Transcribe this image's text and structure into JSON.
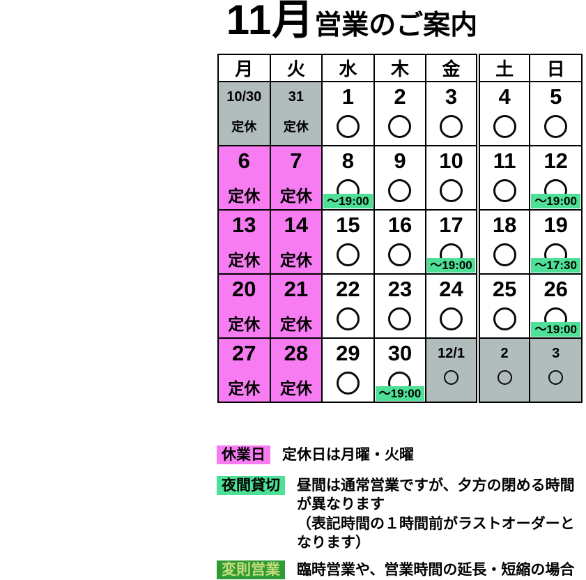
{
  "title": {
    "month": "11月",
    "suffix": "営業のご案内"
  },
  "colors": {
    "closed_pink": "#F77CF2",
    "offmonth_gray": "#B1BCBC",
    "evening_mint": "#4EE096",
    "irregular_green": "#2F9B35",
    "irregular_text": "#C8DE7C",
    "border_black": "#000000"
  },
  "calendar": {
    "day_headers": [
      "月",
      "火",
      "水",
      "木",
      "金",
      "土",
      "日"
    ],
    "closed_label": "定休",
    "weeks": [
      [
        {
          "date": "10/30",
          "style": "gray-small",
          "label": "定休"
        },
        {
          "date": "31",
          "style": "gray-small",
          "label": "定休"
        },
        {
          "date": "1",
          "style": "open",
          "mark": "circle"
        },
        {
          "date": "2",
          "style": "open",
          "mark": "circle"
        },
        {
          "date": "3",
          "style": "open",
          "mark": "circle"
        },
        {
          "date": "4",
          "style": "open",
          "mark": "circle"
        },
        {
          "date": "5",
          "style": "open",
          "mark": "circle"
        }
      ],
      [
        {
          "date": "6",
          "style": "closed",
          "label": "定休"
        },
        {
          "date": "7",
          "style": "closed",
          "label": "定休"
        },
        {
          "date": "8",
          "style": "open",
          "mark": "circle",
          "time": "～19:00"
        },
        {
          "date": "9",
          "style": "open",
          "mark": "circle"
        },
        {
          "date": "10",
          "style": "open",
          "mark": "circle"
        },
        {
          "date": "11",
          "style": "open",
          "mark": "circle"
        },
        {
          "date": "12",
          "style": "open",
          "mark": "circle",
          "time": "～19:00"
        }
      ],
      [
        {
          "date": "13",
          "style": "closed",
          "label": "定休"
        },
        {
          "date": "14",
          "style": "closed",
          "label": "定休"
        },
        {
          "date": "15",
          "style": "open",
          "mark": "circle"
        },
        {
          "date": "16",
          "style": "open",
          "mark": "circle"
        },
        {
          "date": "17",
          "style": "open",
          "mark": "circle",
          "time": "～19:00"
        },
        {
          "date": "18",
          "style": "open",
          "mark": "circle"
        },
        {
          "date": "19",
          "style": "open",
          "mark": "circle",
          "time": "～17:30"
        }
      ],
      [
        {
          "date": "20",
          "style": "closed",
          "label": "定休"
        },
        {
          "date": "21",
          "style": "closed",
          "label": "定休"
        },
        {
          "date": "22",
          "style": "open",
          "mark": "circle"
        },
        {
          "date": "23",
          "style": "open",
          "mark": "circle"
        },
        {
          "date": "24",
          "style": "open",
          "mark": "circle"
        },
        {
          "date": "25",
          "style": "open",
          "mark": "circle"
        },
        {
          "date": "26",
          "style": "open",
          "mark": "circle",
          "time": "～19:00"
        }
      ],
      [
        {
          "date": "27",
          "style": "closed",
          "label": "定休"
        },
        {
          "date": "28",
          "style": "closed",
          "label": "定休"
        },
        {
          "date": "29",
          "style": "open",
          "mark": "circle"
        },
        {
          "date": "30",
          "style": "open",
          "mark": "circle",
          "time": "～19:00"
        },
        {
          "date": "12/1",
          "style": "gray-small",
          "mark": "circle"
        },
        {
          "date": "2",
          "style": "gray-small",
          "mark": "circle"
        },
        {
          "date": "3",
          "style": "gray-small",
          "mark": "circle"
        }
      ]
    ]
  },
  "legend": [
    {
      "swatch": "休業日",
      "swatch_style": "pink",
      "lines": [
        "定休日は月曜・火曜"
      ]
    },
    {
      "swatch": "夜間貸切",
      "swatch_style": "mint",
      "lines": [
        "昼間は通常営業ですが、夕方の閉める時間が異なります",
        "（表記時間の１時間前がラストオーダーとなります）"
      ]
    },
    {
      "swatch": "変則営業",
      "swatch_style": "green",
      "lines": [
        "臨時営業や、営業時間の延長・短縮の場合"
      ]
    }
  ]
}
